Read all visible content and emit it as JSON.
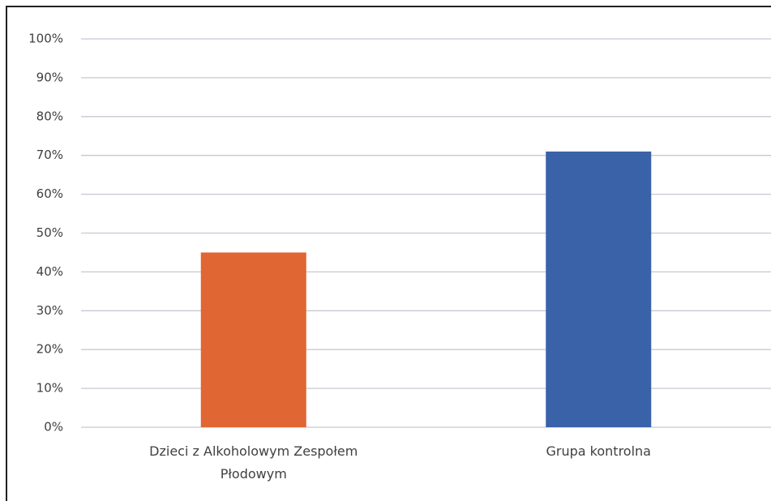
{
  "chart_data": {
    "type": "bar",
    "categories": [
      "Dzieci z Alkoholowym Zespołem Płodowym",
      "Grupa kontrolna"
    ],
    "values": [
      45,
      71
    ],
    "colors": [
      "#e06633",
      "#3a62a8"
    ],
    "ylim": [
      0,
      100
    ],
    "yticks": [
      {
        "value": 0,
        "label": "0%"
      },
      {
        "value": 10,
        "label": "10%"
      },
      {
        "value": 20,
        "label": "20%"
      },
      {
        "value": 30,
        "label": "30%"
      },
      {
        "value": 40,
        "label": "40%"
      },
      {
        "value": 50,
        "label": "50%"
      },
      {
        "value": 60,
        "label": "60%"
      },
      {
        "value": 70,
        "label": "70%"
      },
      {
        "value": 80,
        "label": "80%"
      },
      {
        "value": 90,
        "label": "90%"
      },
      {
        "value": 100,
        "label": "100%"
      }
    ],
    "grid": true
  }
}
